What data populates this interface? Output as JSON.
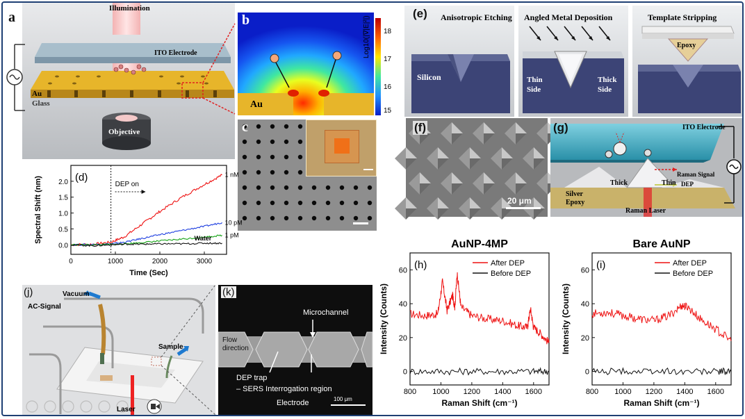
{
  "colors": {
    "frame_border": "#1e3f73",
    "gold": "#e7b52a",
    "red_series": "#ee1111",
    "blue_series": "#1f3fe0",
    "green_series": "#16a316",
    "black_series": "#111111",
    "silicon": "#3c4476",
    "ito": "#4bb0c8"
  },
  "panel_a": {
    "label": "a",
    "illumination": "Illumination",
    "ito": "ITO Electrode",
    "au": "Au",
    "glass": "Glass",
    "objective": "Objective"
  },
  "panel_b": {
    "label": "b",
    "au": "Au",
    "colorbar_ticks": [
      "18",
      "17",
      "16",
      "15"
    ],
    "colorbar_label": "Log10(|∇|E|²|)"
  },
  "panel_c": {
    "label": "c"
  },
  "panel_e": {
    "label": "(e)",
    "step1": "Anisotropic Etching",
    "step2": "Angled Metal Deposition",
    "step3": "Template Stripping",
    "silicon": "Silicon",
    "thin_side": "Thin Side",
    "thick_side": "Thick Side",
    "epoxy": "Epoxy"
  },
  "panel_f": {
    "label": "(f)",
    "scale": "20 μm"
  },
  "panel_g": {
    "label": "(g)",
    "ito": "ITO Electrode",
    "raman_signal": "Raman Signal",
    "dep": "DEP",
    "thick": "Thick",
    "thin": "Thin",
    "silver": "Silver",
    "epoxy": "Epoxy",
    "raman_laser": "Raman Laser"
  },
  "panel_j": {
    "label": "(j)",
    "vacuum": "Vacuum",
    "ac_signal": "AC-Signal",
    "sample": "Sample",
    "laser": "Laser"
  },
  "panel_k": {
    "label": "(k)",
    "microchannel": "Microchannel",
    "flow": "Flow",
    "direction": "direction",
    "dep_trap": "DEP trap",
    "sers": "– SERS Interrogation region",
    "electrode": "Electrode",
    "scale": "100 μm"
  },
  "chart_data": [
    {
      "id": "d",
      "label": "(d)",
      "type": "line",
      "xlabel": "Time (Sec)",
      "ylabel": "Spectral Shift (nm)",
      "xlim": [
        0,
        3500
      ],
      "ylim": [
        -0.3,
        2.5
      ],
      "xticks": [
        "0",
        "1000",
        "2000",
        "3000"
      ],
      "yticks": [
        "0.0",
        "0.5",
        "1.0",
        "1.5",
        "2.0"
      ],
      "annotation": "DEP on",
      "dep_on_x": 900,
      "series": [
        {
          "name": "1 nM",
          "x": [
            0,
            500,
            900,
            1200,
            1600,
            2000,
            2500,
            3000,
            3400
          ],
          "values": [
            0.0,
            0.02,
            0.08,
            0.25,
            0.65,
            1.05,
            1.5,
            1.9,
            2.2
          ]
        },
        {
          "name": "10 pM",
          "x": [
            0,
            500,
            900,
            1200,
            1600,
            2000,
            2500,
            3000,
            3400
          ],
          "values": [
            0.0,
            0.01,
            0.03,
            0.08,
            0.2,
            0.32,
            0.45,
            0.58,
            0.7
          ]
        },
        {
          "name": "1 pM",
          "x": [
            0,
            500,
            900,
            1200,
            1600,
            2000,
            2500,
            3000,
            3400
          ],
          "values": [
            0.0,
            0.0,
            0.01,
            0.03,
            0.07,
            0.12,
            0.18,
            0.24,
            0.3
          ]
        },
        {
          "name": "Water",
          "x": [
            0,
            500,
            900,
            1200,
            1600,
            2000,
            2500,
            3000,
            3400
          ],
          "values": [
            0.0,
            -0.03,
            0.0,
            0.02,
            0.02,
            0.03,
            0.03,
            0.05,
            0.05
          ]
        }
      ]
    },
    {
      "id": "h",
      "label": "(h)",
      "title": "AuNP-4MP",
      "type": "line",
      "xlabel": "Raman Shift (cm⁻¹)",
      "ylabel": "Intensity (Counts)",
      "xlim": [
        800,
        1700
      ],
      "ylim": [
        -8,
        70
      ],
      "xticks": [
        "800",
        "1000",
        "1200",
        "1400",
        "1600"
      ],
      "yticks": [
        "0",
        "20",
        "40",
        "60"
      ],
      "series": [
        {
          "name": "After DEP",
          "x": [
            800,
            900,
            980,
            1010,
            1040,
            1075,
            1090,
            1105,
            1130,
            1200,
            1300,
            1400,
            1500,
            1560,
            1580,
            1600,
            1650,
            1700
          ],
          "values": [
            34,
            33,
            34,
            53,
            36,
            45,
            38,
            58,
            38,
            33,
            31,
            30,
            27,
            26,
            37,
            26,
            22,
            17
          ]
        },
        {
          "name": "Before DEP",
          "x": [
            800,
            1000,
            1200,
            1400,
            1600,
            1700
          ],
          "values": [
            0,
            0,
            0,
            0,
            0,
            0
          ]
        }
      ]
    },
    {
      "id": "i",
      "label": "(i)",
      "title": "Bare AuNP",
      "type": "line",
      "xlabel": "Raman Shift (cm⁻¹)",
      "ylabel": "Intensity (Counts)",
      "xlim": [
        800,
        1700
      ],
      "ylim": [
        -8,
        70
      ],
      "xticks": [
        "800",
        "1000",
        "1200",
        "1400",
        "1600"
      ],
      "yticks": [
        "0",
        "20",
        "40",
        "60"
      ],
      "series": [
        {
          "name": "After DEP",
          "x": [
            800,
            900,
            1000,
            1100,
            1200,
            1300,
            1380,
            1420,
            1500,
            1600,
            1700
          ],
          "values": [
            34,
            35,
            33,
            31,
            30,
            33,
            39,
            38,
            31,
            25,
            18
          ]
        },
        {
          "name": "Before DEP",
          "x": [
            800,
            1000,
            1200,
            1400,
            1600,
            1700
          ],
          "values": [
            0,
            0,
            0,
            0,
            0,
            0
          ]
        }
      ]
    }
  ]
}
